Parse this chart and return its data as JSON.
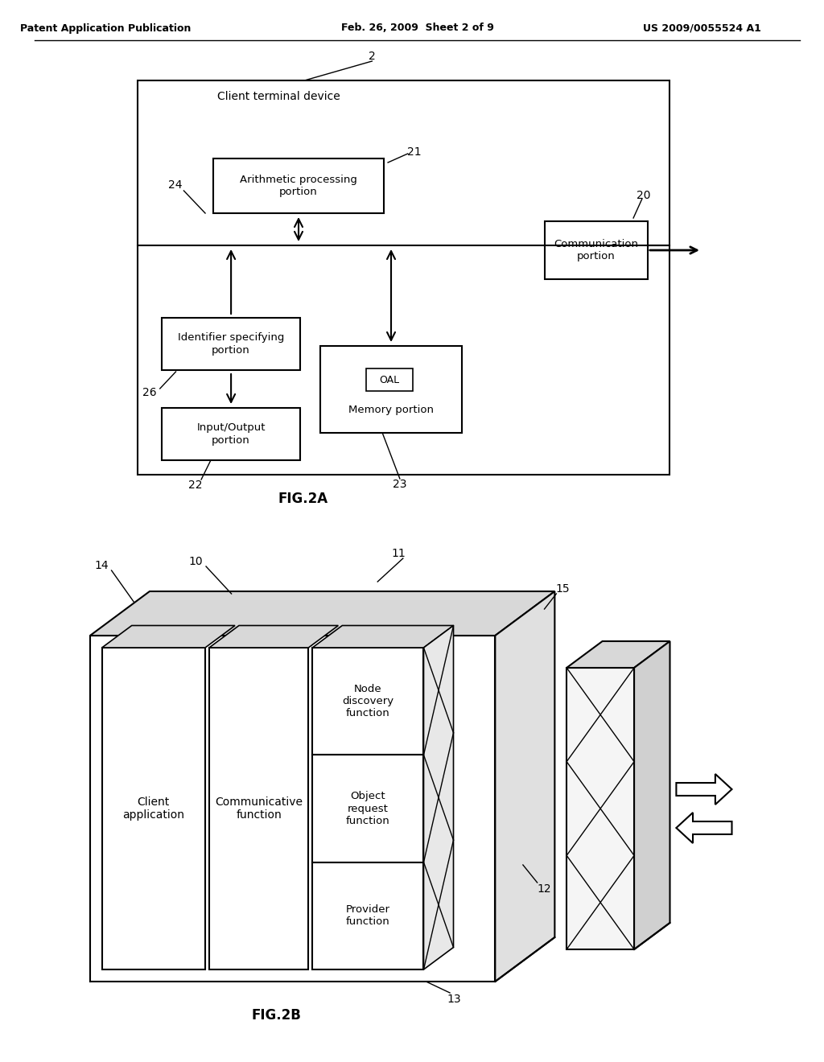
{
  "bg_color": "#ffffff",
  "text_color": "#000000",
  "header_left": "Patent Application Publication",
  "header_mid": "Feb. 26, 2009  Sheet 2 of 9",
  "header_right": "US 2009/0055524 A1",
  "fig2a_label": "FIG.2A",
  "fig2b_label": "FIG.2B",
  "outer_box_label": "Client terminal device",
  "box_texts": {
    "arithmetic": "Arithmetic processing\nportion",
    "communication": "Communication\nportion",
    "identifier": "Identifier specifying\nportion",
    "input_output": "Input/Output\nportion",
    "memory": "Memory portion",
    "client_app": "Client\napplication",
    "communicative": "Communicative\nfunction",
    "node_discovery": "Node\ndiscovery\nfunction",
    "object_request": "Object\nrequest\nfunction",
    "provider": "Provider\nfunction"
  }
}
